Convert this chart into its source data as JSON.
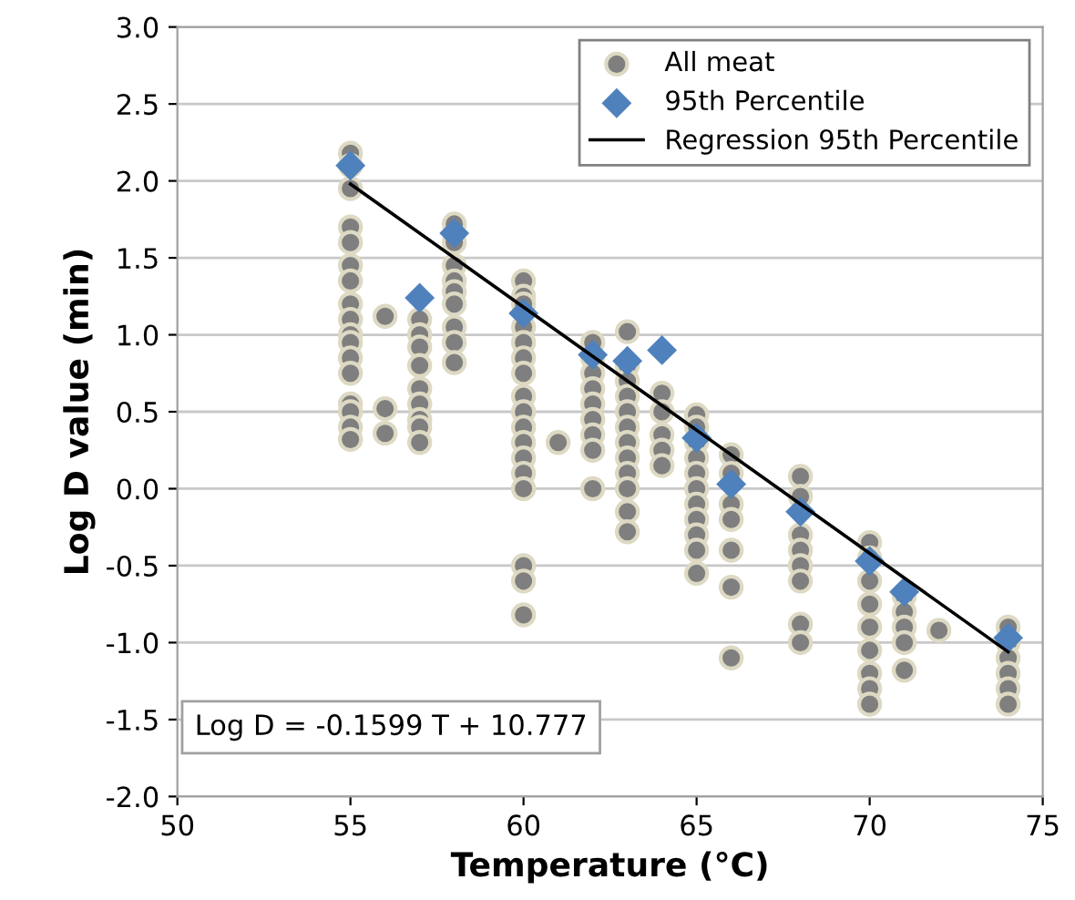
{
  "chart_data": {
    "type": "scatter",
    "xlabel": "Temperature (°C)",
    "ylabel": "Log D value (min)",
    "xlim": [
      50,
      75
    ],
    "xticks": [
      50,
      55,
      60,
      65,
      70,
      75
    ],
    "ylim": [
      -2.0,
      3.0
    ],
    "yticks": [
      {
        "value": -2.0,
        "label": "-2.0"
      },
      {
        "value": -1.5,
        "label": "-1.5"
      },
      {
        "value": -1.0,
        "label": "-1.0"
      },
      {
        "value": -0.5,
        "label": "-0.5"
      },
      {
        "value": 0.0,
        "label": "0.0"
      },
      {
        "value": 0.5,
        "label": "0.5"
      },
      {
        "value": 1.0,
        "label": "1.0"
      },
      {
        "value": 1.5,
        "label": "1.5"
      },
      {
        "value": 2.0,
        "label": "2.0"
      },
      {
        "value": 2.5,
        "label": "2.5"
      },
      {
        "value": 3.0,
        "label": "3.0"
      }
    ],
    "grid": "y",
    "legend": "top right",
    "annotations": [
      "Log D = -0.1599 T + 10.777"
    ],
    "series": [
      {
        "name": "All meat",
        "marker": "circle",
        "color": "#7f7f7f",
        "x": [
          55,
          55,
          55,
          55,
          55,
          55,
          55,
          55,
          55,
          55,
          55,
          55,
          55,
          55,
          55,
          55,
          55,
          56,
          56,
          56,
          57,
          57,
          57,
          57,
          57,
          57,
          57,
          57,
          57,
          58,
          58,
          58,
          58,
          58,
          58,
          58,
          58,
          58,
          60,
          60,
          60,
          60,
          60,
          60,
          60,
          60,
          60,
          60,
          60,
          60,
          60,
          60,
          60,
          60,
          60,
          61,
          62,
          62,
          62,
          62,
          62,
          62,
          62,
          62,
          62,
          63,
          63,
          63,
          63,
          63,
          63,
          63,
          63,
          63,
          63,
          63,
          63,
          64,
          64,
          64,
          64,
          64,
          65,
          65,
          65,
          65,
          65,
          65,
          65,
          65,
          65,
          65,
          65,
          66,
          66,
          66,
          66,
          66,
          66,
          66,
          68,
          68,
          68,
          68,
          68,
          68,
          68,
          68,
          70,
          70,
          70,
          70,
          70,
          70,
          70,
          70,
          70,
          71,
          71,
          71,
          71,
          71,
          72,
          74,
          74,
          74,
          74,
          74,
          74
        ],
        "values": [
          2.18,
          2.1,
          1.95,
          1.7,
          1.6,
          1.45,
          1.35,
          1.2,
          1.1,
          1.0,
          0.95,
          0.85,
          0.75,
          0.55,
          0.5,
          0.4,
          0.32,
          1.12,
          0.52,
          0.36,
          1.1,
          1.0,
          0.92,
          0.8,
          0.65,
          0.55,
          0.45,
          0.4,
          0.3,
          1.72,
          1.6,
          1.45,
          1.35,
          1.28,
          1.2,
          1.05,
          0.95,
          0.82,
          1.35,
          1.25,
          1.2,
          1.05,
          0.95,
          0.85,
          0.75,
          0.6,
          0.5,
          0.4,
          0.3,
          0.2,
          0.1,
          0.0,
          -0.5,
          -0.6,
          -0.82,
          0.3,
          0.95,
          0.85,
          0.75,
          0.65,
          0.55,
          0.45,
          0.35,
          0.25,
          0.0,
          1.02,
          0.8,
          0.7,
          0.6,
          0.5,
          0.4,
          0.3,
          0.2,
          0.1,
          0.0,
          -0.15,
          -0.28,
          0.62,
          0.5,
          0.35,
          0.25,
          0.15,
          0.48,
          0.4,
          0.3,
          0.2,
          0.1,
          0.0,
          -0.1,
          -0.2,
          -0.3,
          -0.4,
          -0.55,
          0.22,
          0.1,
          -0.1,
          -0.2,
          -0.4,
          -0.64,
          -1.1,
          0.08,
          -0.05,
          -0.3,
          -0.4,
          -0.5,
          -0.6,
          -0.88,
          -1.0,
          -0.35,
          -0.45,
          -0.6,
          -0.75,
          -0.9,
          -1.05,
          -1.2,
          -1.3,
          -1.4,
          -0.7,
          -0.8,
          -0.9,
          -1.0,
          -1.18,
          -0.92,
          -0.9,
          -1.0,
          -1.1,
          -1.2,
          -1.3,
          -1.4
        ]
      },
      {
        "name": "95th Percentile",
        "marker": "diamond",
        "color": "#4f81bd",
        "x": [
          55,
          57,
          58,
          60,
          62,
          63,
          64,
          65,
          66,
          68,
          70,
          71,
          74
        ],
        "values": [
          2.1,
          1.24,
          1.66,
          1.14,
          0.87,
          0.83,
          0.9,
          0.33,
          0.03,
          -0.15,
          -0.47,
          -0.67,
          -0.97
        ]
      },
      {
        "name": "Regression 95th Percentile",
        "type": "line",
        "marker": "none",
        "line_style": "solid",
        "color": "#000000",
        "x": [
          55,
          74
        ],
        "values": [
          1.98,
          -1.06
        ]
      }
    ]
  }
}
